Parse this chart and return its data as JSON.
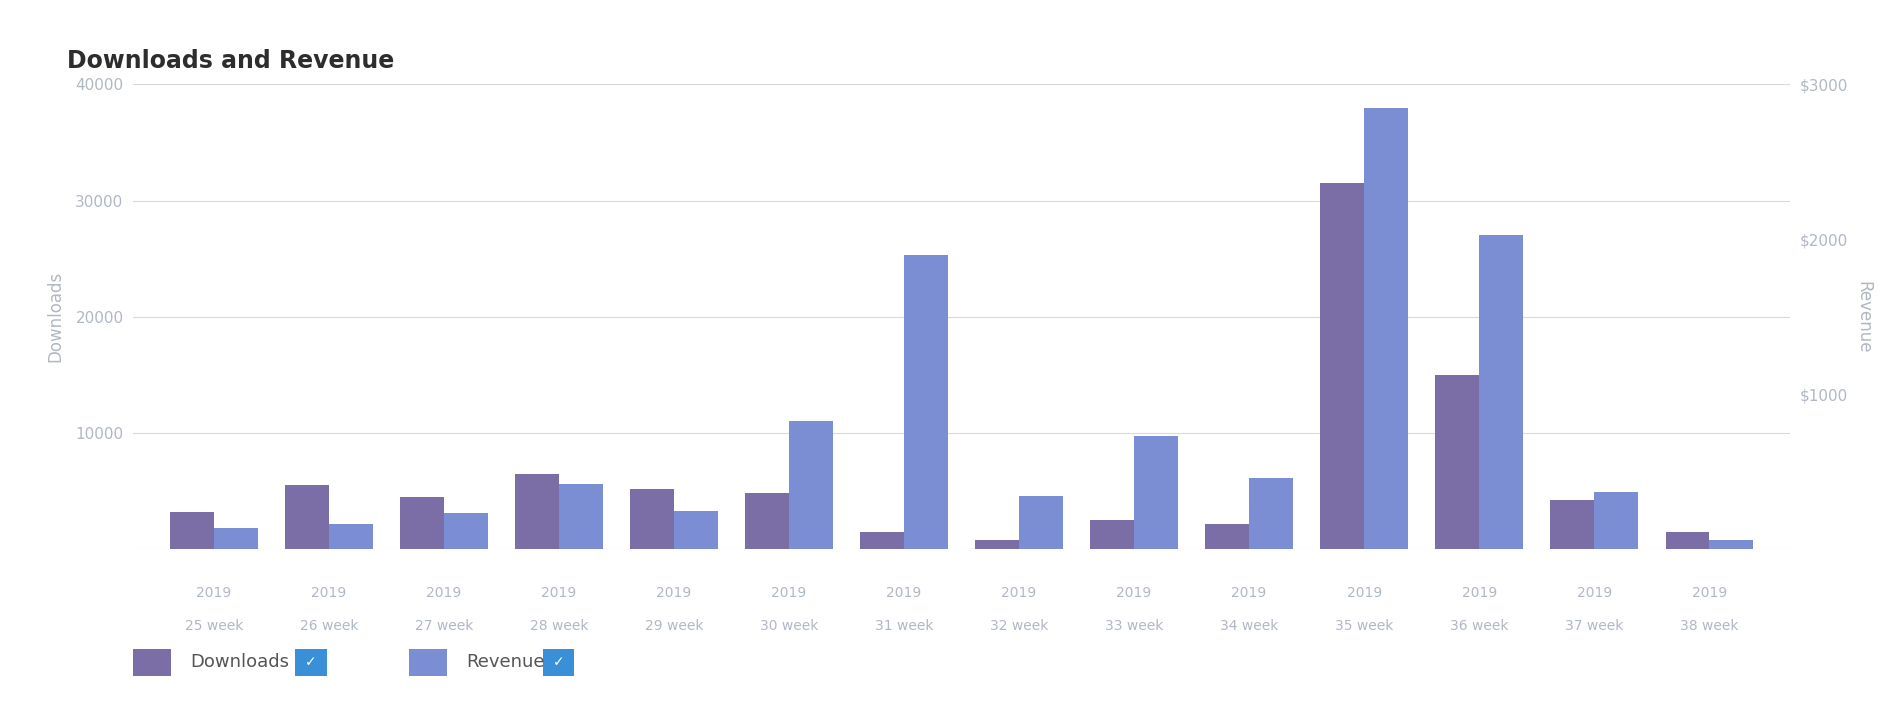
{
  "weeks": [
    "25 week",
    "26 week",
    "27 week",
    "28 week",
    "29 week",
    "30 week",
    "31 week",
    "32 week",
    "33 week",
    "34 week",
    "35 week",
    "36 week",
    "37 week",
    "38 week"
  ],
  "year_labels": [
    "2019",
    "2019",
    "2019",
    "2019",
    "2019",
    "2019",
    "2019",
    "2019",
    "2019",
    "2019",
    "2019",
    "2019",
    "2019",
    "2019"
  ],
  "downloads": [
    3200,
    5500,
    4500,
    6500,
    5200,
    4800,
    1500,
    800,
    2500,
    2200,
    31500,
    15000,
    4200,
    1500
  ],
  "revenue_dollars": [
    135,
    165,
    230,
    420,
    245,
    830,
    1900,
    345,
    730,
    460,
    2850,
    2030,
    370,
    60
  ],
  "downloads_color": "#7B6EA6",
  "revenue_color": "#7B8ED4",
  "title": "Downloads and Revenue",
  "ylabel_left": "Downloads",
  "ylabel_right": "Revenue",
  "ylim_left": [
    0,
    40000
  ],
  "ylim_right": [
    0,
    3000
  ],
  "yticks_left": [
    0,
    10000,
    20000,
    30000,
    40000
  ],
  "ytick_labels_left": [
    "",
    "10000",
    "20000",
    "30000",
    "40000"
  ],
  "yticks_right_pos": [
    0,
    10000,
    20000,
    30000,
    40000
  ],
  "ytick_labels_right": [
    "",
    "$1000",
    "$2000",
    "$3000",
    ""
  ],
  "bg_color": "#ffffff",
  "grid_color": "#d5d9e0",
  "bar_width": 0.38,
  "legend_downloads_label": "Downloads",
  "legend_revenue_label": "Revenue",
  "tick_color": "#b0b8c4",
  "label_color": "#b0b8c4",
  "title_color": "#2d2d2d"
}
